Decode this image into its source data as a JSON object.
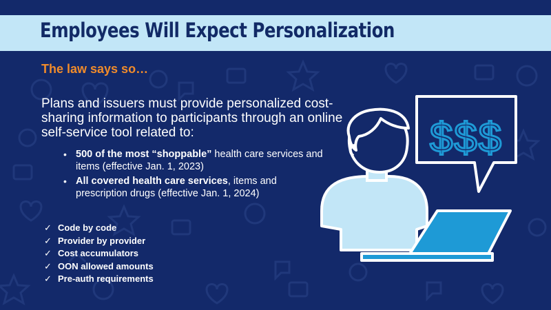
{
  "slide": {
    "title": "Employees Will Expect Personalization",
    "subtitle": "The law says so…",
    "intro": "Plans and issuers must provide personalized cost-sharing information to participants through an online self-service tool related to:",
    "bullets": [
      {
        "bold": "500 of the most “shoppable”",
        "rest": " health care services and items (effective Jan. 1, 2023)"
      },
      {
        "bold": "All covered health care services",
        "rest": ", items and prescription drugs (effective Jan. 1, 2024)"
      }
    ],
    "checklist": [
      "Code by code",
      "Provider by provider",
      "Cost accumulators",
      "OON allowed amounts",
      "Pre-auth requirements"
    ],
    "bubble_text": "$$$"
  },
  "icons": {
    "bullet": "bullet-dot-icon",
    "check": "checkmark-icon",
    "illustration": "person-with-laptop-icon",
    "speech": "speech-bubble-icon"
  },
  "colors": {
    "background": "#13296a",
    "title_bar": "#c2e6f7",
    "title_text": "#122a66",
    "subtitle": "#f08b2b",
    "body_text": "#ffffff",
    "accent_blue": "#1e9ad6",
    "light_blue": "#c2e6f7"
  }
}
